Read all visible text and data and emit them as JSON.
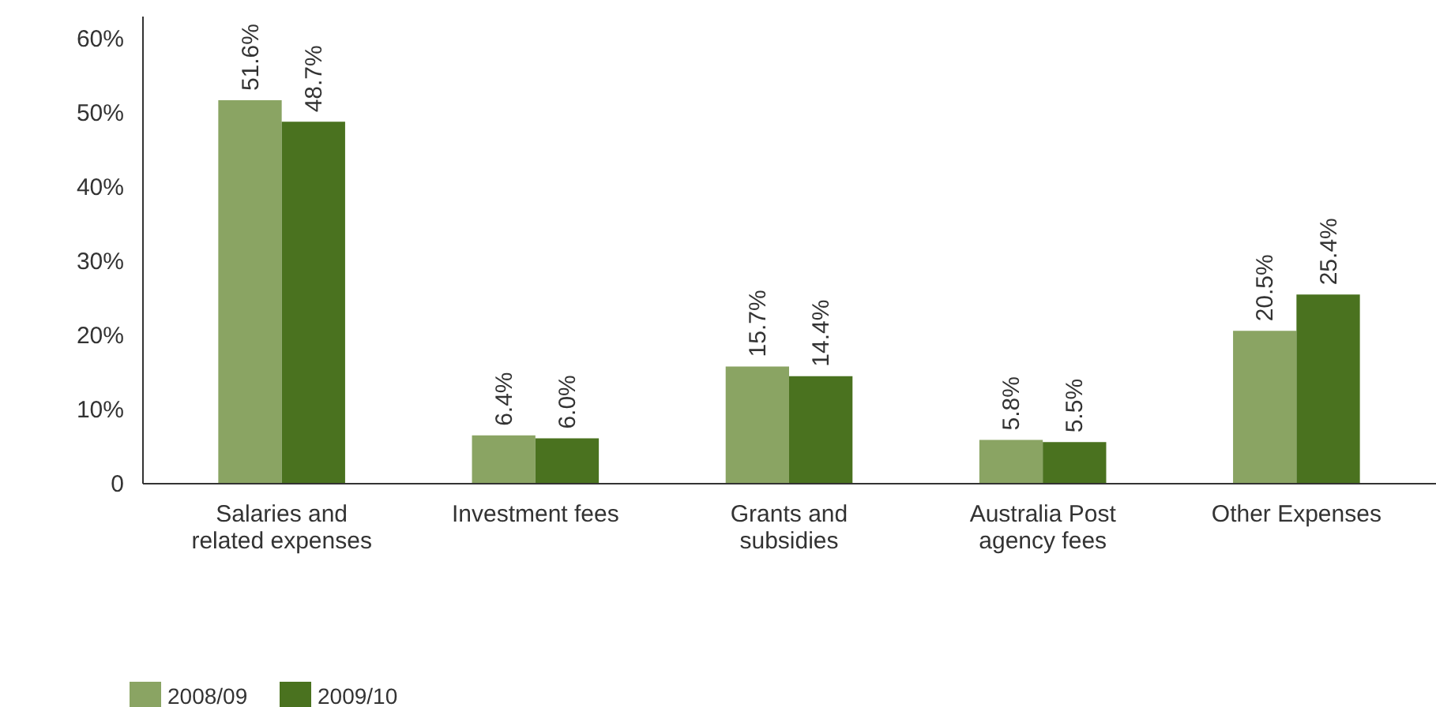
{
  "chart_data": {
    "type": "bar",
    "categories": [
      "Salaries and related expenses",
      "Investment fees",
      "Grants and subsidies",
      "Australia Post agency fees",
      "Other Expenses"
    ],
    "series": [
      {
        "name": "2008/09",
        "color": "#8aa463",
        "values": [
          51.6,
          6.4,
          15.7,
          5.8,
          20.5
        ],
        "value_labels": [
          "51.6%",
          "6.4%",
          "15.7%",
          "5.8%",
          "20.5%"
        ]
      },
      {
        "name": "2009/10",
        "color": "#4a721f",
        "values": [
          48.7,
          6.0,
          14.4,
          5.5,
          25.4
        ],
        "value_labels": [
          "48.7%",
          "6.0%",
          "14.4%",
          "5.5%",
          "25.4%"
        ]
      }
    ],
    "ylim": [
      0,
      63
    ],
    "yticks": [
      {
        "value": 0,
        "label": "0"
      },
      {
        "value": 10,
        "label": "10%"
      },
      {
        "value": 20,
        "label": "20%"
      },
      {
        "value": 30,
        "label": "30%"
      },
      {
        "value": 40,
        "label": "40%"
      },
      {
        "value": 50,
        "label": "50%"
      },
      {
        "value": 60,
        "label": "60%"
      }
    ],
    "grid": false,
    "legend": "bottom left"
  }
}
